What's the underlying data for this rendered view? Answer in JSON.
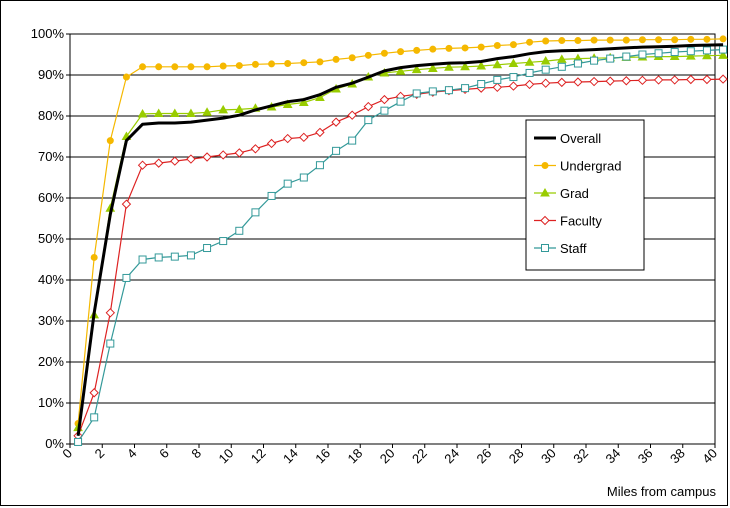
{
  "chart_data": {
    "type": "line",
    "title": "",
    "xlabel": "Miles from campus",
    "ylabel": "",
    "xlim": [
      0,
      40
    ],
    "ylim": [
      0,
      100
    ],
    "x_ticks": [
      0,
      2,
      4,
      6,
      8,
      10,
      12,
      14,
      16,
      18,
      20,
      22,
      24,
      26,
      28,
      30,
      32,
      34,
      36,
      38,
      40
    ],
    "y_ticks": [
      "0%",
      "10%",
      "20%",
      "30%",
      "40%",
      "50%",
      "60%",
      "70%",
      "80%",
      "90%",
      "100%"
    ],
    "grid": "horizontal",
    "legend_position": "right",
    "x": [
      0.5,
      1.5,
      2.5,
      3.5,
      4.5,
      5.5,
      6.5,
      7.5,
      8.5,
      9.5,
      10.5,
      11.5,
      12.5,
      13.5,
      14.5,
      15.5,
      16.5,
      17.5,
      18.5,
      19.5,
      20.5,
      21.5,
      22.5,
      23.5,
      24.5,
      25.5,
      26.5,
      27.5,
      28.5,
      29.5,
      30.5,
      31.5,
      32.5,
      33.5,
      34.5,
      35.5,
      36.5,
      37.5,
      38.5,
      39.5,
      40.5
    ],
    "series": [
      {
        "name": "Overall",
        "color": "#000000",
        "marker": "none",
        "values": [
          2,
          32,
          56,
          74,
          78,
          78.3,
          78.3,
          78.5,
          79,
          79.5,
          80.2,
          81.5,
          82.5,
          83.5,
          84,
          85.2,
          87,
          88,
          89.5,
          91,
          91.8,
          92.3,
          92.6,
          92.9,
          93,
          93.3,
          94,
          94.5,
          95.2,
          95.7,
          95.9,
          96,
          96.2,
          96.4,
          96.6,
          96.8,
          96.9,
          97,
          97.2,
          97.3,
          97.4
        ]
      },
      {
        "name": "Undergrad",
        "color": "#f5b800",
        "marker": "circle",
        "values": [
          5,
          45.5,
          74,
          89.5,
          92,
          92,
          92,
          92,
          92,
          92.2,
          92.3,
          92.6,
          92.7,
          92.8,
          93,
          93.2,
          93.8,
          94.2,
          94.8,
          95.3,
          95.7,
          96,
          96.3,
          96.5,
          96.6,
          96.8,
          97.2,
          97.4,
          98,
          98.3,
          98.4,
          98.4,
          98.5,
          98.5,
          98.5,
          98.6,
          98.6,
          98.6,
          98.7,
          98.7,
          98.8
        ]
      },
      {
        "name": "Grad",
        "color": "#99cc00",
        "marker": "triangle",
        "values": [
          4,
          31.5,
          57.5,
          75,
          80.5,
          80.6,
          80.6,
          80.6,
          80.9,
          81.5,
          81.6,
          81.9,
          82.2,
          82.8,
          83.3,
          84.5,
          86.6,
          87.8,
          89.5,
          90.5,
          90.9,
          91.3,
          91.6,
          91.9,
          92,
          92.2,
          92.5,
          92.8,
          93.1,
          93.4,
          93.8,
          94,
          94.1,
          94.2,
          94.3,
          94.4,
          94.5,
          94.5,
          94.6,
          94.7,
          94.8
        ]
      },
      {
        "name": "Faculty",
        "color": "#dd2222",
        "marker": "diamond",
        "values": [
          2,
          12.5,
          32,
          58.5,
          68,
          68.5,
          69,
          69.5,
          70,
          70.5,
          71,
          72,
          73.3,
          74.5,
          74.8,
          76,
          78.5,
          80.2,
          82.3,
          84,
          84.8,
          85.3,
          85.8,
          86.2,
          86.5,
          86.8,
          87,
          87.3,
          87.7,
          88,
          88.2,
          88.3,
          88.4,
          88.5,
          88.6,
          88.7,
          88.8,
          88.8,
          88.9,
          88.9,
          89
        ]
      },
      {
        "name": "Staff",
        "color": "#339999",
        "marker": "square",
        "values": [
          0.5,
          6.5,
          24.5,
          40.5,
          45,
          45.5,
          45.7,
          46,
          47.8,
          49.5,
          52,
          56.5,
          60.5,
          63.5,
          65,
          68,
          71.5,
          74,
          79,
          81.3,
          83.5,
          85.5,
          86,
          86.3,
          86.8,
          87.8,
          88.8,
          89.5,
          90.5,
          91.3,
          92,
          92.8,
          93.5,
          94,
          94.5,
          95,
          95.3,
          95.6,
          95.8,
          96,
          96.2
        ]
      }
    ]
  }
}
